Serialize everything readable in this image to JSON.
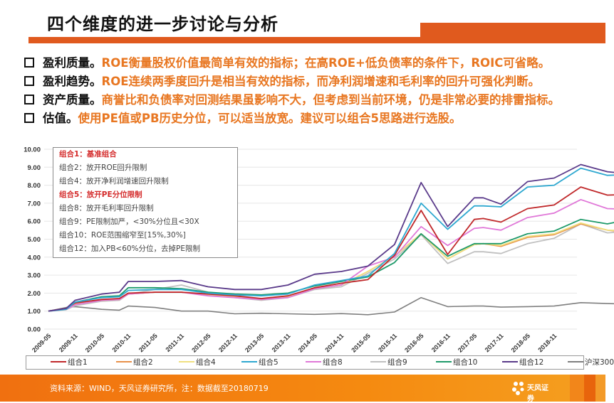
{
  "header": {
    "title": "四个维度的进一步讨论与分析"
  },
  "bullets": [
    {
      "head": "盈利质量。",
      "body": "ROE衡量股权价值最简单有效的指标；在高ROE+低负债率的条件下，ROIC可省略。"
    },
    {
      "head": "盈利趋势。",
      "body": "ROE连续两季度回升是相当有效的指标，而净利润增速和毛利率的回升可强化判断。"
    },
    {
      "head": "资产质量。",
      "body": "商誉比和负债率对回测结果虽影响不大，但考虑到当前环境，仍是非常必要的排雷指标。"
    },
    {
      "head": "估值。",
      "body": "使用PE值或PB历史分位，可以适当放宽。建议可以组合5思路进行选股。"
    }
  ],
  "annotation_box": [
    {
      "text": "组合1：基准组合",
      "highlight": true
    },
    {
      "text": "组合2：放开ROE回升限制",
      "highlight": false
    },
    {
      "text": "组合4：放开净利润增速回升限制",
      "highlight": false
    },
    {
      "text": "组合5：放开PE分位限制",
      "highlight": true
    },
    {
      "text": "组合8：放开毛利率回升限制",
      "highlight": false
    },
    {
      "text": "组合9：PE限制加严，<30%分位且<30X",
      "highlight": false
    },
    {
      "text": "组合10：ROE范围缩窄至[15%,30%]",
      "highlight": false
    },
    {
      "text": "组合12：加入PB<60%分位，去掉PE限制",
      "highlight": false
    }
  ],
  "chart_data": {
    "type": "line",
    "title": "",
    "xlabel": "",
    "ylabel": "",
    "ylim": [
      0,
      10
    ],
    "y_ticks": [
      "0.00",
      "1.00",
      "2.00",
      "3.00",
      "4.00",
      "5.00",
      "6.00",
      "7.00",
      "8.00",
      "9.00",
      "10.00"
    ],
    "x_tick_labels": [
      "2009-05",
      "2009-11",
      "2010-05",
      "2010-11",
      "2011-05",
      "2011-11",
      "2012-05",
      "2012-11",
      "2013-05",
      "2013-11",
      "2014-05",
      "2014-11",
      "2015-05",
      "2015-11",
      "2016-05",
      "2016-11",
      "2017-05",
      "2017-11",
      "2018-05",
      "2018-11"
    ],
    "x_index_note": "x values are months since 2009-05",
    "x": [
      0,
      4,
      6,
      12,
      16,
      18,
      24,
      30,
      36,
      42,
      48,
      54,
      60,
      66,
      72,
      78,
      84,
      90,
      96,
      98,
      102,
      108,
      114,
      120,
      126,
      132,
      138
    ],
    "grid": true,
    "legend_position": "bottom",
    "series": [
      {
        "name": "组合1",
        "color": "#c0282a",
        "values": [
          1.0,
          1.15,
          1.45,
          1.65,
          1.7,
          2.0,
          2.05,
          2.05,
          1.95,
          1.85,
          1.7,
          1.85,
          2.3,
          2.55,
          2.75,
          4.1,
          6.6,
          4.15,
          6.1,
          6.15,
          5.95,
          6.7,
          6.9,
          7.9,
          7.45,
          7.5,
          7.5
        ]
      },
      {
        "name": "组合2",
        "color": "#e8914a",
        "values": [
          1.0,
          1.1,
          1.4,
          1.6,
          1.65,
          1.95,
          2.05,
          2.05,
          1.9,
          1.8,
          1.65,
          1.8,
          2.25,
          2.45,
          3.2,
          4.05,
          5.3,
          3.9,
          4.7,
          4.75,
          4.6,
          5.1,
          5.25,
          5.85,
          5.5,
          5.35,
          5.4
        ]
      },
      {
        "name": "组合4",
        "color": "#f0e080",
        "values": [
          1.0,
          1.1,
          1.4,
          1.6,
          1.65,
          1.95,
          2.05,
          2.05,
          1.9,
          1.8,
          1.65,
          1.8,
          2.25,
          2.45,
          3.2,
          4.05,
          5.3,
          3.9,
          4.7,
          4.75,
          4.65,
          5.15,
          5.3,
          5.9,
          5.5,
          5.45,
          5.45
        ]
      },
      {
        "name": "组合5",
        "color": "#2ea8d0",
        "values": [
          1.0,
          1.1,
          1.5,
          1.75,
          1.8,
          2.15,
          2.2,
          2.2,
          2.0,
          1.9,
          1.85,
          1.95,
          2.45,
          2.7,
          2.95,
          4.2,
          7.0,
          5.55,
          6.85,
          6.85,
          6.8,
          7.9,
          8.0,
          8.95,
          8.55,
          8.6,
          8.6
        ]
      },
      {
        "name": "组合8",
        "color": "#e078d8",
        "values": [
          1.0,
          1.1,
          1.35,
          1.6,
          1.65,
          1.95,
          2.05,
          2.05,
          1.85,
          1.75,
          1.65,
          1.75,
          2.25,
          2.45,
          3.5,
          4.0,
          5.7,
          4.65,
          5.6,
          5.65,
          5.5,
          6.2,
          6.45,
          7.2,
          6.7,
          6.65,
          6.65
        ]
      },
      {
        "name": "组合9",
        "color": "#c0c0c0",
        "values": [
          1.0,
          1.08,
          1.3,
          1.55,
          1.6,
          1.95,
          2.2,
          2.45,
          2.05,
          1.75,
          1.6,
          1.75,
          2.2,
          2.35,
          3.1,
          3.9,
          5.25,
          3.65,
          4.3,
          4.3,
          4.2,
          4.75,
          5.05,
          5.85,
          5.35,
          5.45,
          5.4
        ]
      },
      {
        "name": "组合10",
        "color": "#1e9a6a",
        "values": [
          1.0,
          1.12,
          1.5,
          1.8,
          1.85,
          2.3,
          2.3,
          2.25,
          2.05,
          1.95,
          1.9,
          2.0,
          2.4,
          2.65,
          2.9,
          3.7,
          5.3,
          4.05,
          4.75,
          4.75,
          4.75,
          5.3,
          5.45,
          6.1,
          5.85,
          6.15,
          6.35
        ]
      },
      {
        "name": "组合12",
        "color": "#5a3a8a",
        "values": [
          1.0,
          1.15,
          1.6,
          1.95,
          2.05,
          2.65,
          2.65,
          2.7,
          2.35,
          2.2,
          2.2,
          2.45,
          3.05,
          3.2,
          3.5,
          4.7,
          8.15,
          5.7,
          7.3,
          7.3,
          6.95,
          8.2,
          8.4,
          9.15,
          8.75,
          8.6,
          8.55
        ]
      },
      {
        "name": "沪深300",
        "color": "#7f7f7f",
        "values": [
          1.0,
          1.2,
          1.25,
          1.1,
          1.05,
          1.28,
          1.2,
          1.0,
          1.0,
          0.85,
          0.88,
          0.85,
          0.82,
          0.86,
          0.8,
          0.95,
          1.75,
          1.25,
          1.28,
          1.28,
          1.22,
          1.25,
          1.28,
          1.47,
          1.42,
          1.38,
          1.32
        ]
      }
    ]
  },
  "footer": {
    "source": "资料来源：WIND，天风证券研究所，注：数据截至20180719",
    "logo_text": "天风证券"
  }
}
